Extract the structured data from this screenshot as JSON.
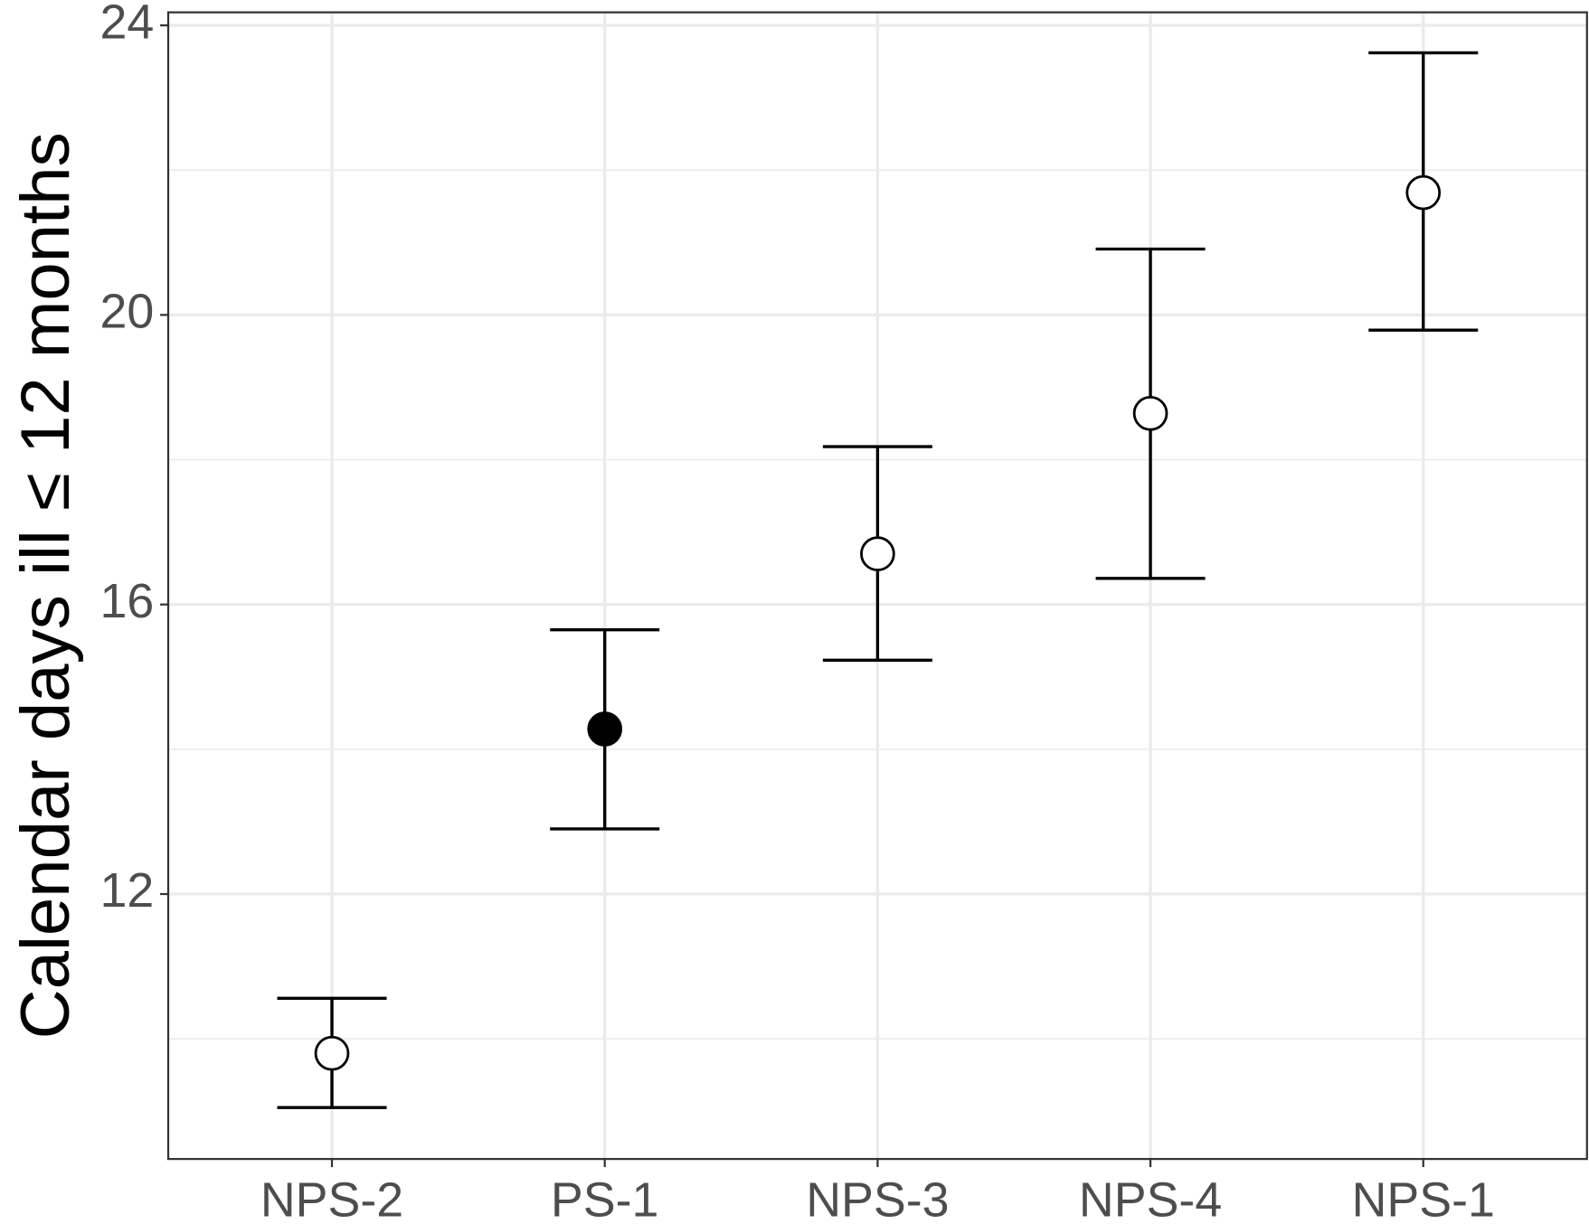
{
  "chart_data": {
    "type": "errorpoint",
    "y_label": "Calendar days ill ≤ 12 months",
    "categories": [
      "NPS-2",
      "PS-1",
      "NPS-3",
      "NPS-4",
      "NPS-1"
    ],
    "values": [
      9.8,
      14.28,
      16.7,
      18.64,
      21.69
    ],
    "lower": [
      9.05,
      12.9,
      15.23,
      16.36,
      19.79
    ],
    "upper": [
      10.56,
      15.65,
      18.18,
      20.91,
      23.62
    ],
    "filled": [
      false,
      true,
      false,
      false,
      false
    ],
    "color": "#000000",
    "ylim": [
      8.34,
      24.18
    ],
    "yticks": [
      12,
      16,
      20,
      24
    ],
    "minor_yticks": [
      10,
      14,
      18,
      22
    ],
    "grid": true
  }
}
